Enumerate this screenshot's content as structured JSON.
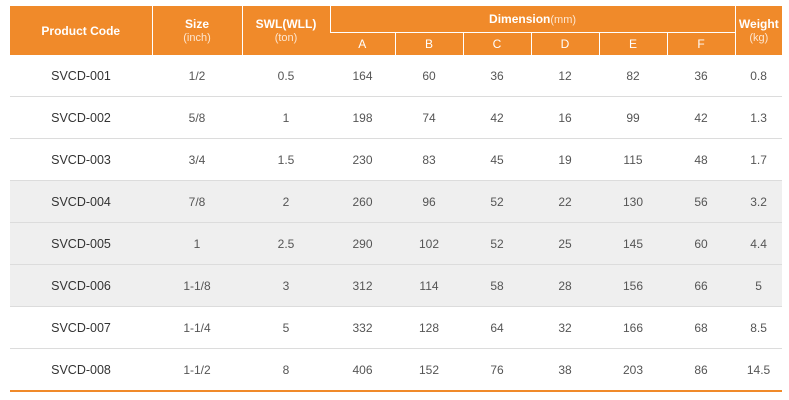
{
  "header": {
    "product_code": "Product Code",
    "size": "Size",
    "size_unit": "(inch)",
    "swl": "SWL(WLL)",
    "swl_unit": "(ton)",
    "dimension": "Dimension",
    "dimension_unit": "(mm)",
    "weight": "Weight",
    "weight_unit": "(kg)",
    "dims": [
      "A",
      "B",
      "C",
      "D",
      "E",
      "F"
    ]
  },
  "rows": [
    {
      "code": "SVCD-001",
      "size": "1/2",
      "swl": "0.5",
      "a": "164",
      "b": "60",
      "c": "36",
      "d": "12",
      "e": "82",
      "f": "36",
      "weight": "0.8"
    },
    {
      "code": "SVCD-002",
      "size": "5/8",
      "swl": "1",
      "a": "198",
      "b": "74",
      "c": "42",
      "d": "16",
      "e": "99",
      "f": "42",
      "weight": "1.3"
    },
    {
      "code": "SVCD-003",
      "size": "3/4",
      "swl": "1.5",
      "a": "230",
      "b": "83",
      "c": "45",
      "d": "19",
      "e": "115",
      "f": "48",
      "weight": "1.7"
    },
    {
      "code": "SVCD-004",
      "size": "7/8",
      "swl": "2",
      "a": "260",
      "b": "96",
      "c": "52",
      "d": "22",
      "e": "130",
      "f": "56",
      "weight": "3.2"
    },
    {
      "code": "SVCD-005",
      "size": "1",
      "swl": "2.5",
      "a": "290",
      "b": "102",
      "c": "52",
      "d": "25",
      "e": "145",
      "f": "60",
      "weight": "4.4"
    },
    {
      "code": "SVCD-006",
      "size": "1-1/8",
      "swl": "3",
      "a": "312",
      "b": "114",
      "c": "58",
      "d": "28",
      "e": "156",
      "f": "66",
      "weight": "5"
    },
    {
      "code": "SVCD-007",
      "size": "1-1/4",
      "swl": "5",
      "a": "332",
      "b": "128",
      "c": "64",
      "d": "32",
      "e": "166",
      "f": "68",
      "weight": "8.5"
    },
    {
      "code": "SVCD-008",
      "size": "1-1/2",
      "swl": "8",
      "a": "406",
      "b": "152",
      "c": "76",
      "d": "38",
      "e": "203",
      "f": "86",
      "weight": "14.5"
    }
  ],
  "colors": {
    "header_bg": "#f08a2a",
    "shaded_row": "#efefef"
  }
}
